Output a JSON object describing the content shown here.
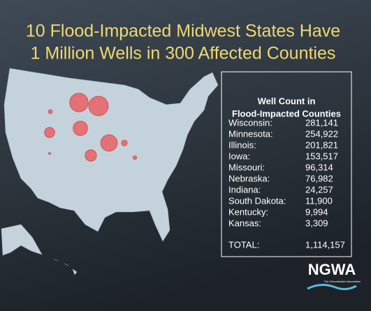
{
  "header": {
    "title_lines": [
      "10 Flood-Impacted Midwest States Have",
      "1 Million Wells in 300 Affected Counties"
    ]
  },
  "table": {
    "title_lines": [
      "Well Count in",
      "Flood-Impacted Counties"
    ],
    "rows": [
      [
        "Wisconsin:",
        "281,141"
      ],
      [
        "Minnesota:",
        "254,922"
      ],
      [
        "Illinois:",
        "201,821"
      ],
      [
        "Iowa:",
        "153,517"
      ],
      [
        "Missouri:",
        "96,314"
      ],
      [
        "Nebraska:",
        "76,982"
      ],
      [
        "Indiana:",
        "24,257"
      ],
      [
        "South Dakota:",
        "11,900"
      ],
      [
        "Kentucky:",
        "9,994"
      ],
      [
        "Kansas:",
        "3,309"
      ]
    ],
    "total": [
      "TOTAL:",
      "1,114,157"
    ]
  },
  "logo": {
    "name": "NGWA",
    "tagline": "The Groundwater Association"
  }
}
